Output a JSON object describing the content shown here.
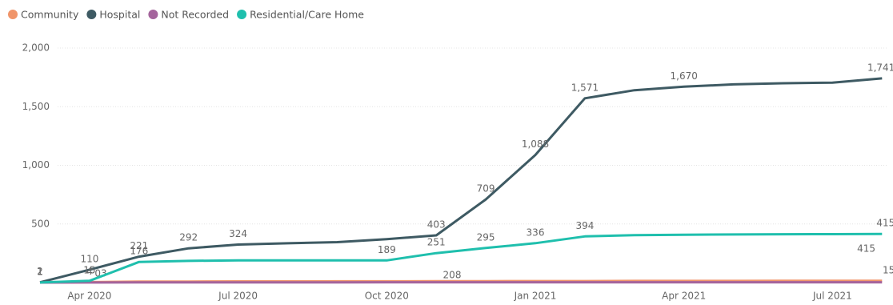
{
  "chart_data": {
    "type": "line",
    "categories": [
      null,
      "Apr 2020",
      null,
      null,
      "Jul 2020",
      null,
      null,
      "Oct 2020",
      null,
      null,
      "Jan 2021",
      null,
      null,
      "Apr 2021",
      null,
      null,
      "Jul 2021",
      null
    ],
    "series": [
      {
        "name": "Community",
        "color": "#f0956a",
        "values": [
          1,
          4,
          8,
          9,
          10,
          10,
          11,
          11,
          12,
          12,
          13,
          13,
          14,
          14,
          14,
          15,
          15,
          15
        ],
        "value_labels": [
          "1",
          "4",
          null,
          null,
          null,
          null,
          null,
          null,
          null,
          null,
          null,
          null,
          null,
          null,
          null,
          null,
          null,
          "15"
        ]
      },
      {
        "name": "Hospital",
        "color": "#3e5a63",
        "values": [
          2,
          110,
          221,
          292,
          324,
          335,
          345,
          370,
          403,
          709,
          1088,
          1571,
          1640,
          1670,
          1690,
          1700,
          1705,
          1741
        ],
        "value_labels": [
          "2",
          "110",
          "221",
          "292",
          "324",
          null,
          null,
          null,
          "403",
          "709",
          "1,088",
          "1,571",
          null,
          "1,670",
          null,
          null,
          null,
          "1,741"
        ]
      },
      {
        "name": "Not Recorded",
        "color": "#a4649c",
        "values": [
          0,
          1,
          2,
          2,
          2,
          2,
          2,
          3,
          3,
          3,
          3,
          3,
          3,
          3,
          3,
          3,
          3,
          3
        ]
      },
      {
        "name": "Residential/Care Home",
        "color": "#1fbfad",
        "values": [
          1,
          15,
          176,
          185,
          190,
          190,
          190,
          189,
          251,
          295,
          336,
          394,
          405,
          408,
          410,
          412,
          413,
          415
        ],
        "value_labels": [
          "1",
          "15",
          "176",
          null,
          null,
          null,
          null,
          "189",
          "251",
          "295",
          "336",
          "394",
          null,
          null,
          null,
          null,
          null,
          "415"
        ]
      }
    ],
    "annotations": [
      "03",
      "208",
      "415"
    ],
    "ylim": [
      0,
      2000
    ],
    "yticks": [
      {
        "value": 500,
        "label": "500"
      },
      {
        "value": 1000,
        "label": "1,000"
      },
      {
        "value": 1500,
        "label": "1,500"
      },
      {
        "value": 2000,
        "label": "2,000"
      }
    ],
    "grid": true
  }
}
